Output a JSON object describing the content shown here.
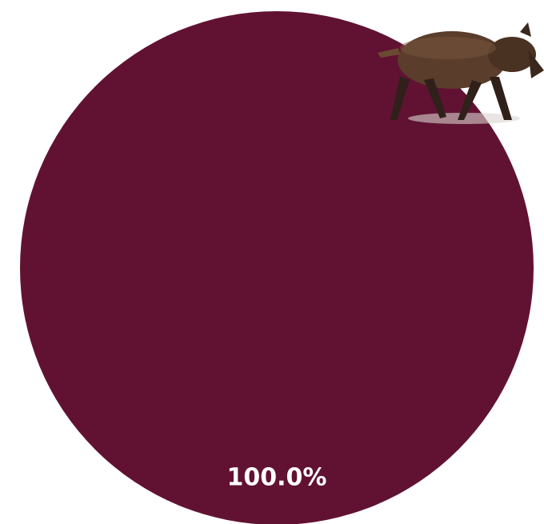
{
  "chart_data": {
    "type": "pie",
    "categories": [
      null
    ],
    "values": [
      100
    ],
    "value_labels": [
      "100.0%"
    ],
    "colors": [
      "#611232"
    ]
  }
}
